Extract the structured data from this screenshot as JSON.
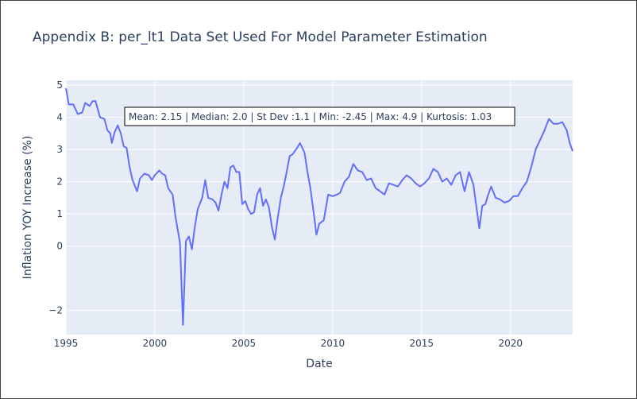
{
  "chart_data": {
    "type": "line",
    "title": "Appendix B: per_lt1 Data Set Used For Model Parameter Estimation",
    "xlabel": "Date",
    "ylabel": "Inflation YOY Increase (%)",
    "x_ticks": [
      "1995",
      "2000",
      "2005",
      "2010",
      "2015",
      "2020"
    ],
    "y_ticks": [
      "5",
      "4",
      "3",
      "2",
      "1",
      "0",
      "−2"
    ],
    "xlim": [
      "1995-01-01",
      "2023-07-01"
    ],
    "ylim": [
      -2.75,
      5.15
    ],
    "grid": true,
    "annotation": "Mean: 2.15 | Median: 2.0 | St Dev :1.1 | Min: -2.45 | Max: 4.9 | Kurtosis: 1.03",
    "colors": {
      "line": "#636efa",
      "plot_bg": "#e5ecf6",
      "grid": "#ffffff",
      "text": "#2a3f5f"
    },
    "series": [
      {
        "x": [
          "1995-01-01",
          "1995-03-01",
          "1995-06-01",
          "1995-09-01",
          "1995-12-01",
          "1996-02-01",
          "1996-05-01",
          "1996-07-01",
          "1996-09-01",
          "1996-12-01",
          "1997-03-01",
          "1997-05-01",
          "1997-07-01",
          "1997-08-01",
          "1997-10-01",
          "1997-12-01",
          "1998-02-01",
          "1998-04-01",
          "1998-06-01",
          "1998-08-01",
          "1998-10-01",
          "1999-01-01",
          "1999-03-01",
          "1999-06-01",
          "1999-09-01",
          "1999-11-01",
          "2000-01-01",
          "2000-04-01",
          "2000-06-01",
          "2000-08-01",
          "2000-10-01",
          "2001-01-01",
          "2001-03-01",
          "2001-06-01",
          "2001-08-01",
          "2001-10-01",
          "2001-12-01",
          "2002-02-01",
          "2002-04-01",
          "2002-06-01",
          "2002-09-01",
          "2002-11-01",
          "2003-01-01",
          "2003-04-01",
          "2003-06-01",
          "2003-08-01",
          "2003-10-01",
          "2003-12-01",
          "2004-02-01",
          "2004-04-01",
          "2004-06-01",
          "2004-08-01",
          "2004-10-01",
          "2004-12-01",
          "2005-02-01",
          "2005-04-01",
          "2005-06-01",
          "2005-08-01",
          "2005-10-01",
          "2005-12-01",
          "2006-02-01",
          "2006-04-01",
          "2006-06-01",
          "2006-08-01",
          "2006-10-01",
          "2006-12-01",
          "2007-02-01",
          "2007-04-01",
          "2007-06-01",
          "2007-08-01",
          "2007-10-01",
          "2008-01-01",
          "2008-03-01",
          "2008-06-01",
          "2008-08-01",
          "2008-10-01",
          "2008-12-01",
          "2009-02-01",
          "2009-04-01",
          "2009-07-01",
          "2009-10-01",
          "2010-01-01",
          "2010-04-01",
          "2010-06-01",
          "2010-09-01",
          "2010-12-01",
          "2011-03-01",
          "2011-06-01",
          "2011-09-01",
          "2011-12-01",
          "2012-03-01",
          "2012-06-01",
          "2012-09-01",
          "2012-12-01",
          "2013-03-01",
          "2013-06-01",
          "2013-09-01",
          "2013-12-01",
          "2014-03-01",
          "2014-06-01",
          "2014-09-01",
          "2014-12-01",
          "2015-03-01",
          "2015-06-01",
          "2015-09-01",
          "2015-12-01",
          "2016-03-01",
          "2016-06-01",
          "2016-09-01",
          "2016-12-01",
          "2017-03-01",
          "2017-06-01",
          "2017-09-01",
          "2017-12-01",
          "2018-02-01",
          "2018-04-01",
          "2018-06-01",
          "2018-08-01",
          "2018-10-01",
          "2018-12-01",
          "2019-03-01",
          "2019-06-01",
          "2019-09-01",
          "2019-12-01",
          "2020-03-01",
          "2020-06-01",
          "2020-09-01",
          "2020-12-01",
          "2021-03-01",
          "2021-06-01",
          "2021-09-01",
          "2021-12-01",
          "2022-03-01",
          "2022-06-01",
          "2022-09-01",
          "2022-12-01",
          "2023-03-01",
          "2023-05-01",
          "2023-07-01"
        ],
        "y": [
          4.9,
          4.4,
          4.4,
          4.1,
          4.15,
          4.45,
          4.35,
          4.5,
          4.5,
          4.0,
          3.95,
          3.6,
          3.5,
          3.2,
          3.55,
          3.75,
          3.5,
          3.1,
          3.05,
          2.45,
          2.05,
          1.7,
          2.1,
          2.25,
          2.2,
          2.05,
          2.2,
          2.35,
          2.25,
          2.2,
          1.8,
          1.6,
          0.9,
          0.1,
          -2.45,
          0.15,
          0.3,
          -0.1,
          0.6,
          1.15,
          1.5,
          2.05,
          1.5,
          1.45,
          1.35,
          1.1,
          1.6,
          2.0,
          1.8,
          2.45,
          2.5,
          2.3,
          2.3,
          1.3,
          1.4,
          1.15,
          1.0,
          1.05,
          1.6,
          1.8,
          1.25,
          1.45,
          1.2,
          0.6,
          0.2,
          0.9,
          1.5,
          1.85,
          2.3,
          2.8,
          2.85,
          3.05,
          3.2,
          2.9,
          2.3,
          1.8,
          1.1,
          0.35,
          0.7,
          0.8,
          1.6,
          1.55,
          1.6,
          1.65,
          2.0,
          2.15,
          2.55,
          2.35,
          2.3,
          2.05,
          2.1,
          1.8,
          1.7,
          1.6,
          1.95,
          1.9,
          1.85,
          2.05,
          2.2,
          2.1,
          1.95,
          1.85,
          1.95,
          2.1,
          2.4,
          2.3,
          2.0,
          2.1,
          1.9,
          2.2,
          2.3,
          1.7,
          2.3,
          1.9,
          1.2,
          0.55,
          1.25,
          1.3,
          1.6,
          1.85,
          1.5,
          1.45,
          1.35,
          1.4,
          1.55,
          1.55,
          1.8,
          2.0,
          2.45,
          3.0,
          3.3,
          3.6,
          3.95,
          3.8,
          3.8,
          3.85,
          3.6,
          3.2,
          2.95
        ]
      }
    ]
  }
}
